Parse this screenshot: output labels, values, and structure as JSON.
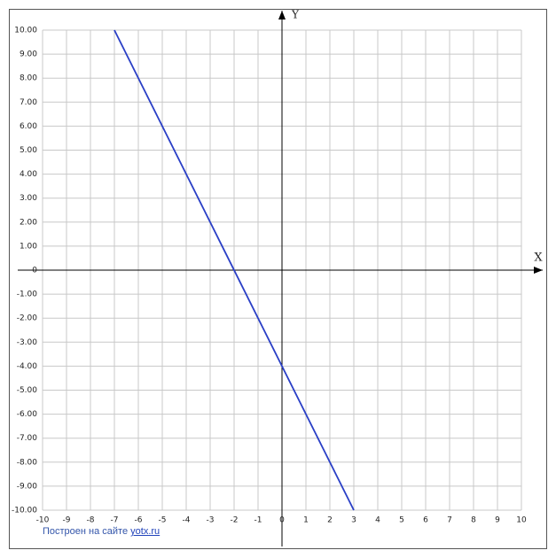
{
  "chart_data": {
    "type": "line",
    "x_label": "X",
    "y_label": "Y",
    "x": [
      -7,
      3
    ],
    "series": [
      {
        "color": "#2a3fc6",
        "values": [
          10,
          -10
        ]
      }
    ],
    "xlim": [
      -10,
      10
    ],
    "ylim": [
      -10,
      10
    ],
    "xticks": [
      -10,
      -9,
      -8,
      -7,
      -6,
      -5,
      -4,
      -3,
      -2,
      -1,
      0,
      1,
      2,
      3,
      4,
      5,
      6,
      7,
      8,
      9,
      10
    ],
    "yticks": [
      {
        "value": 10,
        "label": "10.00"
      },
      {
        "value": 9,
        "label": "9.00"
      },
      {
        "value": 8,
        "label": "8.00"
      },
      {
        "value": 7,
        "label": "7.00"
      },
      {
        "value": 6,
        "label": "6.00"
      },
      {
        "value": 5,
        "label": "5.00"
      },
      {
        "value": 4,
        "label": "4.00"
      },
      {
        "value": 3,
        "label": "3.00"
      },
      {
        "value": 2,
        "label": "2.00"
      },
      {
        "value": 1,
        "label": "1.00"
      },
      0,
      {
        "value": -1,
        "label": "-1.00"
      },
      {
        "value": -2,
        "label": "-2.00"
      },
      {
        "value": -3,
        "label": "-3.00"
      },
      {
        "value": -4,
        "label": "-4.00"
      },
      {
        "value": -5,
        "label": "-5.00"
      },
      {
        "value": -6,
        "label": "-6.00"
      },
      {
        "value": -7,
        "label": "-7.00"
      },
      {
        "value": -8,
        "label": "-8.00"
      },
      {
        "value": -9,
        "label": "-9.00"
      },
      {
        "value": -10,
        "label": "-10.00"
      }
    ],
    "grid": true
  },
  "footer": {
    "text": "Построен на сайте",
    "link": "yotx.ru"
  }
}
